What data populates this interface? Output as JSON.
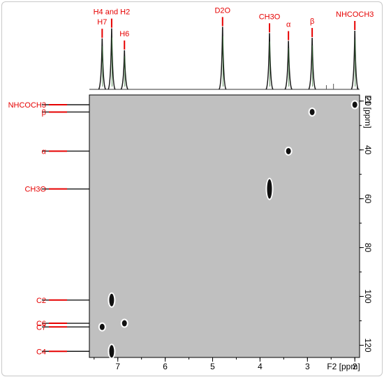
{
  "chart_data": {
    "type": "scatter",
    "subtype": "2D HSQC NMR spectrum",
    "xlabel": "F2 [ppm]",
    "ylabel": "F1 [ppm]",
    "xlim": [
      7.6,
      1.9
    ],
    "ylim": [
      17.5,
      125
    ],
    "x_ticks": [
      7,
      6,
      5,
      4,
      3,
      2
    ],
    "y_ticks": [
      20,
      40,
      60,
      80,
      100,
      120
    ],
    "grid": false,
    "colors": {
      "annotation": "#e60000",
      "plot_background": "#c0c0c0",
      "axis": "#000000",
      "peak": "#111111"
    },
    "proton_spectrum": [
      {
        "label": "H7",
        "ppm": 7.33,
        "height": 0.65
      },
      {
        "label": "H4 and H2",
        "ppm": 7.13,
        "height": 0.78
      },
      {
        "label": "H6",
        "ppm": 6.86,
        "height": 0.5
      },
      {
        "label": "D2O",
        "ppm": 4.79,
        "height": 0.8
      },
      {
        "label": "CH3O",
        "ppm": 3.8,
        "height": 0.72
      },
      {
        "label": "α",
        "ppm": 3.4,
        "height": 0.62
      },
      {
        "label": "β",
        "ppm": 2.9,
        "height": 0.66
      },
      {
        "label": "NHCOCH3",
        "ppm": 2.0,
        "height": 0.75
      }
    ],
    "carbon_labels": [
      {
        "label": "NHCOCH3",
        "ppm": 21.5
      },
      {
        "label": "β",
        "ppm": 24.5
      },
      {
        "label": "α",
        "ppm": 40.5
      },
      {
        "label": "CH3O",
        "ppm": 56
      },
      {
        "label": "C2",
        "ppm": 101.5
      },
      {
        "label": "C6",
        "ppm": 111
      },
      {
        "label": "C7",
        "ppm": 112.5
      },
      {
        "label": "C4",
        "ppm": 122.5
      }
    ],
    "cross_peaks": [
      {
        "assignment": "NHCOCH3",
        "x": 2.0,
        "y": 21.5
      },
      {
        "assignment": "β",
        "x": 2.9,
        "y": 24.5
      },
      {
        "assignment": "α",
        "x": 3.4,
        "y": 40.5
      },
      {
        "assignment": "CH3O",
        "x": 3.8,
        "y": 56
      },
      {
        "assignment": "C2",
        "x": 7.13,
        "y": 101.5
      },
      {
        "assignment": "C6",
        "x": 6.86,
        "y": 111
      },
      {
        "assignment": "C7",
        "x": 7.33,
        "y": 112.5
      },
      {
        "assignment": "C4",
        "x": 7.13,
        "y": 122.5
      }
    ]
  }
}
